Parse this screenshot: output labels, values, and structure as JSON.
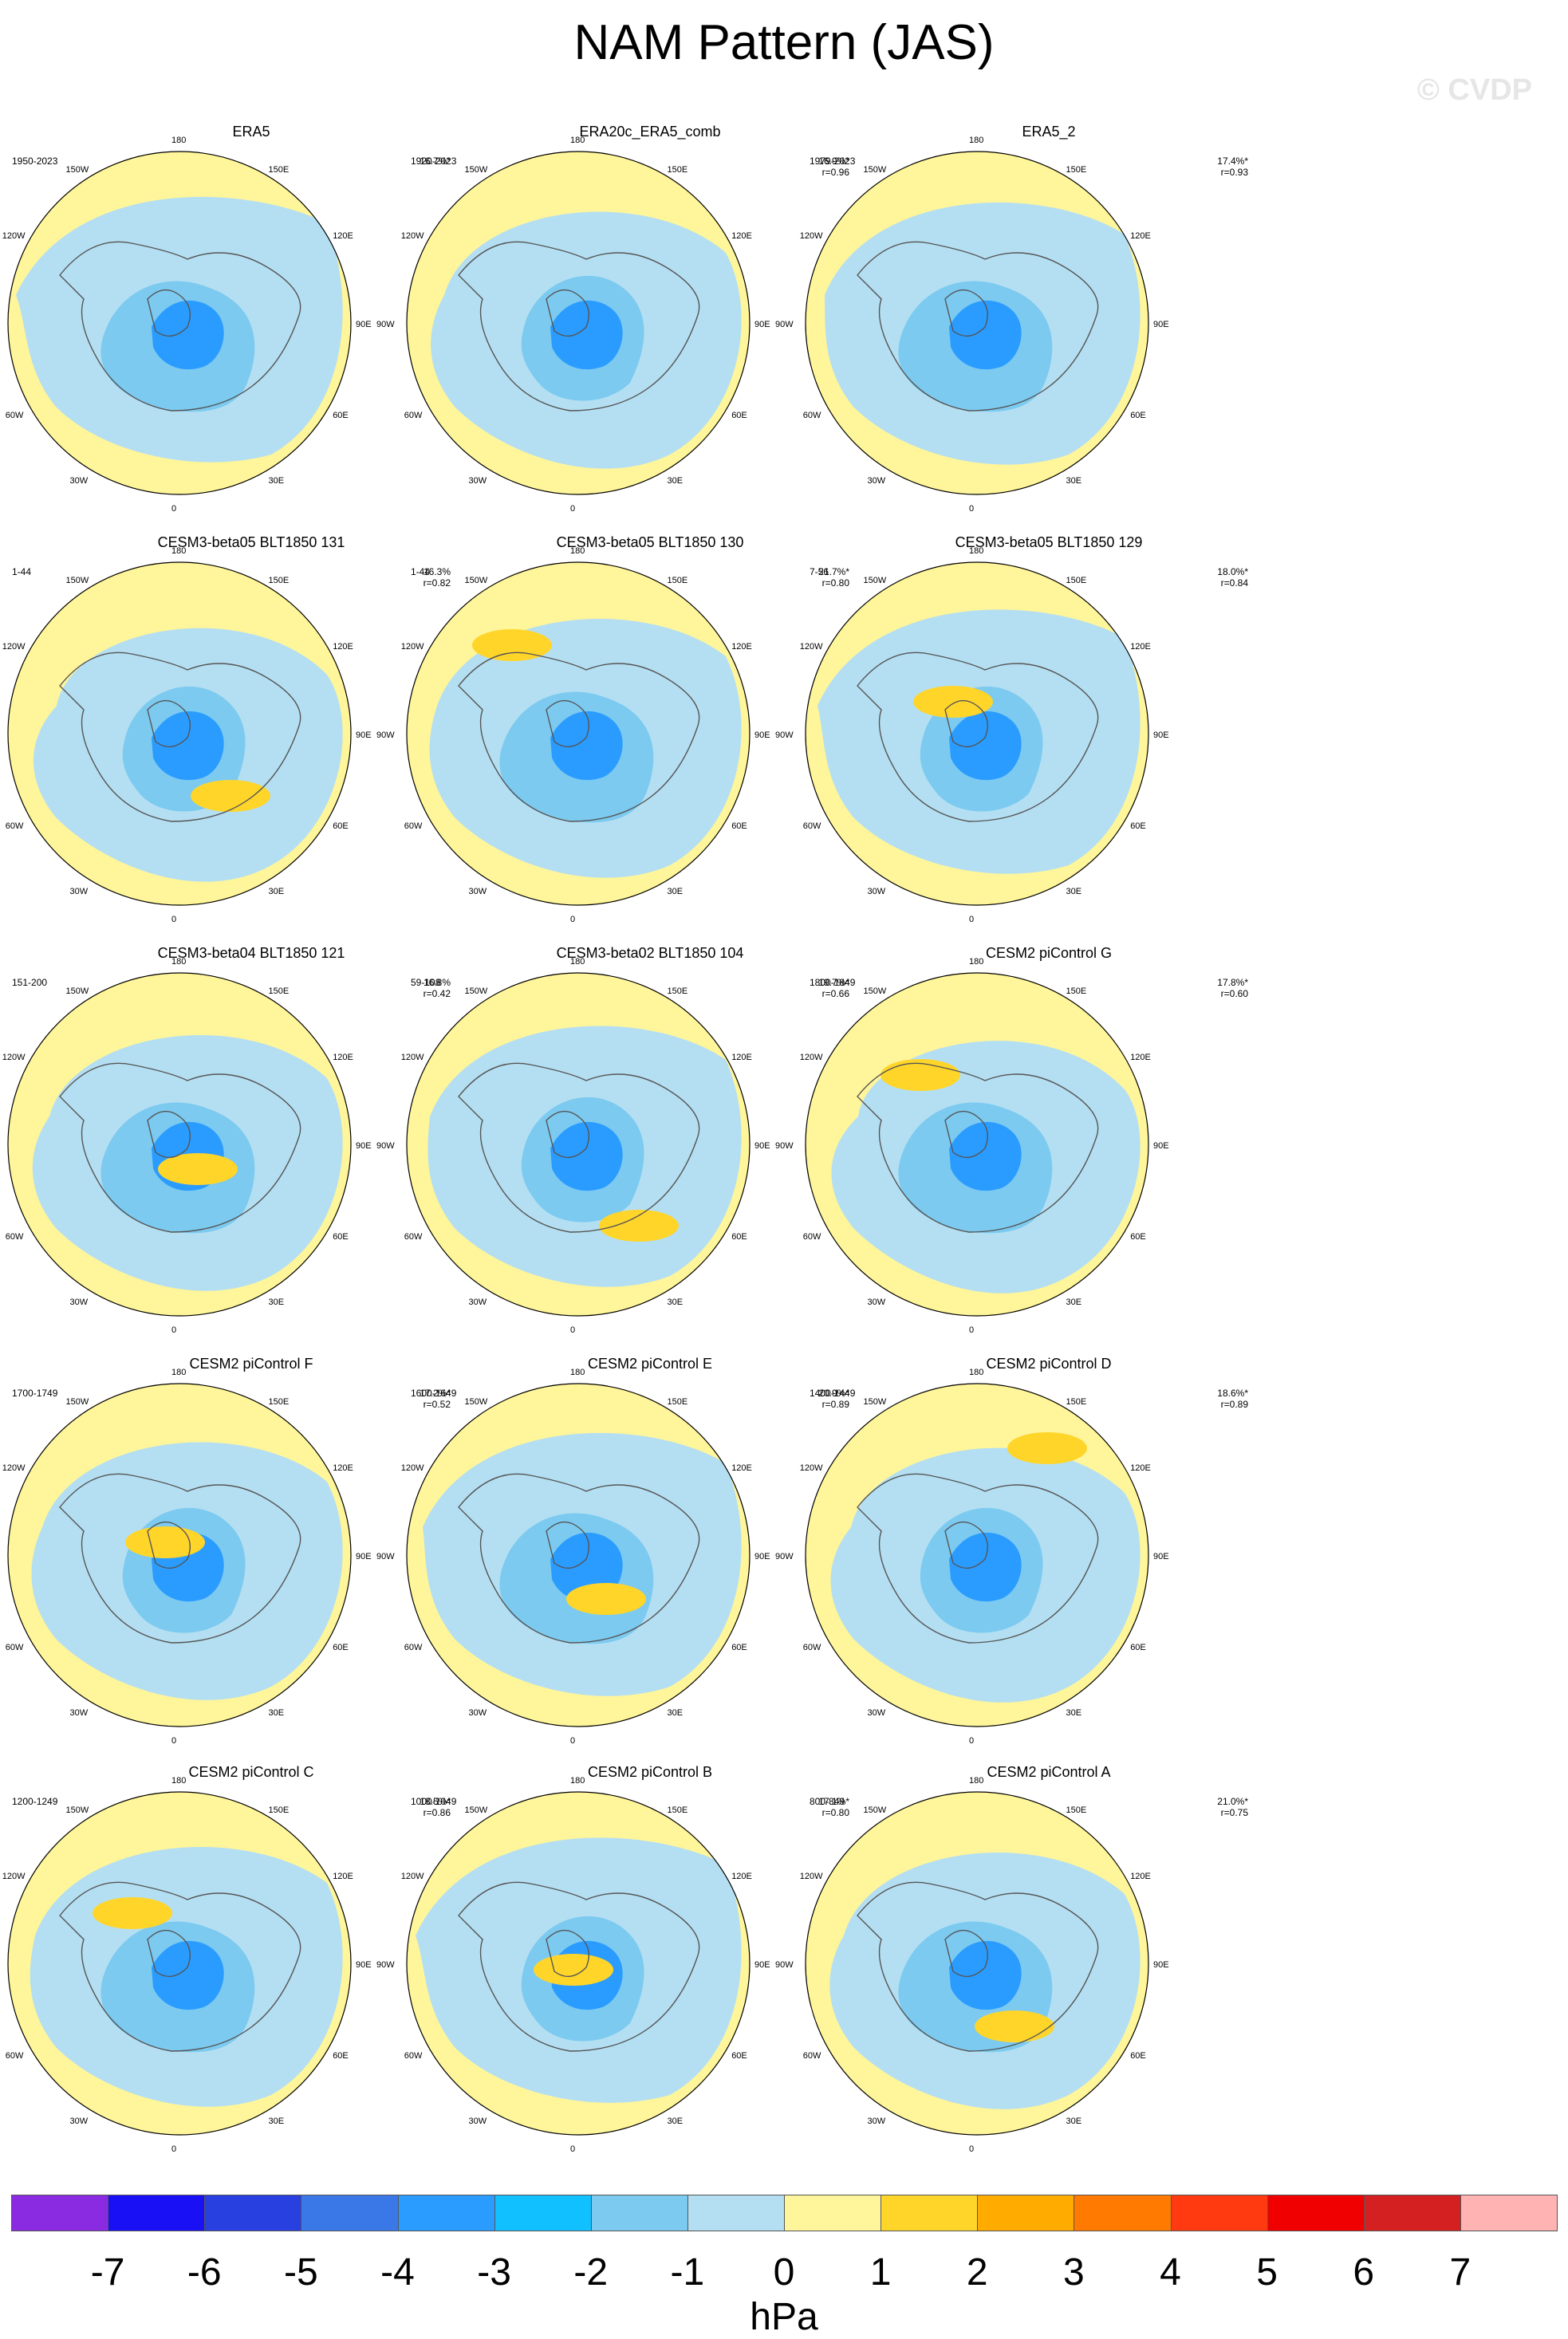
{
  "title": "NAM Pattern (JAS)",
  "watermark": "© CVDP",
  "longitude_labels": {
    "top": "180",
    "bottom": "0",
    "left_upper": "150W",
    "left_mid_upper": "120W",
    "left": "90W",
    "left_mid_lower": "60W",
    "left_lower": "30W",
    "right_upper": "150E",
    "right_mid_upper": "120E",
    "right": "90E",
    "right_mid_lower": "60E",
    "right_lower": "30E"
  },
  "panels": [
    {
      "title": "ERA5",
      "period": "1950-2023",
      "pct": "16.7%*",
      "r": ""
    },
    {
      "title": "ERA20c_ERA5_comb",
      "period": "1920-2023",
      "pct": "16.9%*",
      "r": "r=0.96"
    },
    {
      "title": "ERA5_2",
      "period": "1979-2023",
      "pct": "17.4%*",
      "r": "r=0.93"
    },
    {
      "title": "CESM3-beta05 BLT1850 131",
      "period": "1-44",
      "pct": "16.3%",
      "r": "r=0.82"
    },
    {
      "title": "CESM3-beta05 BLT1850 130",
      "period": "1-44",
      "pct": "21.7%*",
      "r": "r=0.80"
    },
    {
      "title": "CESM3-beta05 BLT1850 129",
      "period": "7-56",
      "pct": "18.0%*",
      "r": "r=0.84"
    },
    {
      "title": "CESM3-beta04 BLT1850 121",
      "period": "151-200",
      "pct": "16.8%",
      "r": "r=0.42"
    },
    {
      "title": "CESM3-beta02 BLT1850 104",
      "period": "59-108",
      "pct": "19.7%*",
      "r": "r=0.66"
    },
    {
      "title": "CESM2 piControl G",
      "period": "1800-1849",
      "pct": "17.8%*",
      "r": "r=0.60"
    },
    {
      "title": "CESM2 piControl F",
      "period": "1700-1749",
      "pct": "17.2%*",
      "r": "r=0.52"
    },
    {
      "title": "CESM2 piControl E",
      "period": "1600-1649",
      "pct": "20.9%*",
      "r": "r=0.89"
    },
    {
      "title": "CESM2 piControl D",
      "period": "1400-1449",
      "pct": "18.6%*",
      "r": "r=0.89"
    },
    {
      "title": "CESM2 piControl C",
      "period": "1200-1249",
      "pct": "18.5%*",
      "r": "r=0.86"
    },
    {
      "title": "CESM2 piControl B",
      "period": "1000-1049",
      "pct": "17.1%*",
      "r": "r=0.80"
    },
    {
      "title": "CESM2 piControl A",
      "period": "800-849",
      "pct": "21.0%*",
      "r": "r=0.75"
    }
  ],
  "colorbar": {
    "units": "hPa",
    "ticks": [
      "-7",
      "-6",
      "-5",
      "-4",
      "-3",
      "-2",
      "-1",
      "0",
      "1",
      "2",
      "3",
      "4",
      "5",
      "6",
      "7"
    ],
    "colors": [
      "#8a2be2",
      "#1a10f5",
      "#2840e0",
      "#3a78e8",
      "#2a9cff",
      "#10c0ff",
      "#7ccaf0",
      "#b4dff2",
      "#fff59a",
      "#ffd52a",
      "#ffab00",
      "#ff7a00",
      "#ff3a10",
      "#f00000",
      "#d42020",
      "#ffb3b3"
    ]
  }
}
